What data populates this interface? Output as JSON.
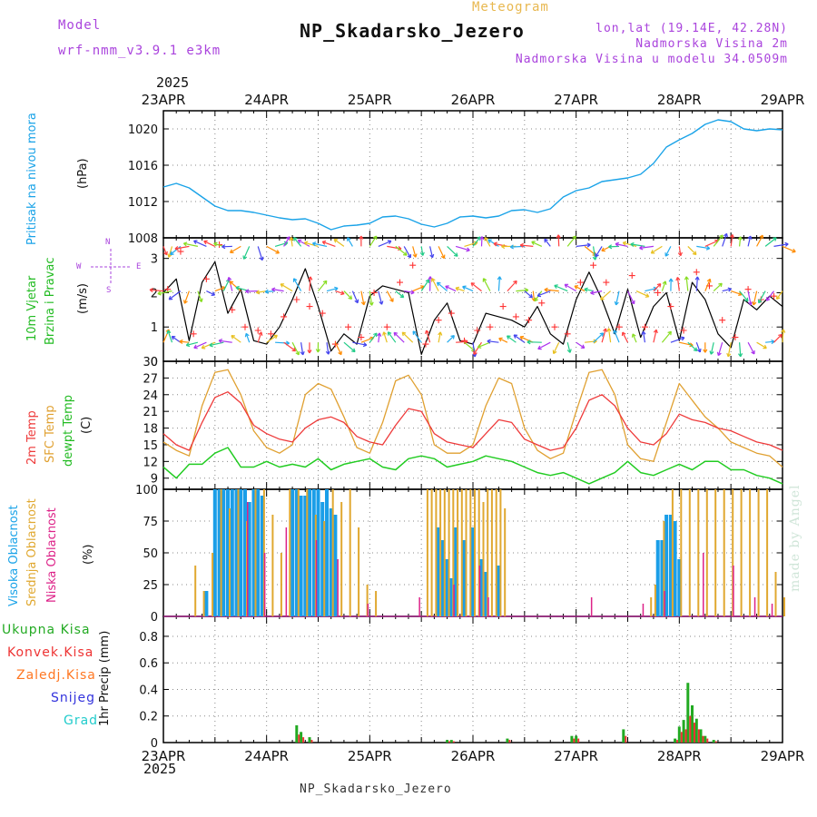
{
  "header": {
    "model_label": "Model",
    "model_name": "wrf-nmm_v3.9.1 e3km",
    "product": "Meteogram",
    "station": "NP_Skadarsko_Jezero",
    "lonlat": "lon,lat (19.14E, 42.28N)",
    "elevation": "Nadmorska Visina 2m",
    "model_elevation": "Nadmorska Visina u modelu 34.0509m",
    "year": "2025",
    "footer_station": "NP_Skadarsko_Jezero",
    "watermark": "made by Angel"
  },
  "colors": {
    "pressure": "#1aa3e8",
    "temp2m": "#ee3a3a",
    "sfc": "#e0a030",
    "dewpt": "#22cc22",
    "high_cloud": "#1a9ee8",
    "mid_cloud": "#e0a830",
    "low_cloud": "#dd2288",
    "total_precip": "#22aa22",
    "conv_precip": "#ee3333",
    "frz_precip": "#ff7722",
    "snow": "#3333dd",
    "hail": "#22cccc",
    "wind_speed": "#000000",
    "wind_gust": "#ff3333",
    "compass": "#aa44dd"
  },
  "x_axis": {
    "days": [
      "23APR",
      "24APR",
      "25APR",
      "26APR",
      "27APR",
      "28APR",
      "29APR"
    ],
    "hours_per_day": 24
  },
  "panels": {
    "pressure": {
      "labels": [
        "Pritisak na nivou mora"
      ],
      "unit": "(hPa)"
    },
    "wind": {
      "labels": [
        "10m Vjetar",
        "Brzina i Pravac"
      ],
      "unit": "(m/s)",
      "compass": {
        "n": "N",
        "s": "S",
        "e": "E",
        "w": "W"
      }
    },
    "temp": {
      "labels": [
        "2m Temp",
        "SFC Temp",
        "dewpt Temp"
      ],
      "unit": "(C)"
    },
    "cloud": {
      "labels": [
        "Visoka Oblacnost",
        "Srednja Oblacnost",
        "Niska Oblacnost"
      ],
      "unit": "(%)"
    },
    "precip": {
      "labels": [
        "Ukupna Kisa",
        "Konvek.Kisa",
        "Zaledj.Kisa",
        "Snijeg",
        "Grad"
      ],
      "unit": "1hr Precip (mm)"
    }
  },
  "chart_data": [
    {
      "type": "line",
      "title": "Pritisak na nivou mora",
      "ylabel": "(hPa)",
      "ylim": [
        1008,
        1022
      ],
      "yticks": [
        1008,
        1012,
        1016,
        1020
      ],
      "series": [
        {
          "name": "Pritisak na nivou mora",
          "x": [
            0,
            3,
            6,
            9,
            12,
            15,
            18,
            21,
            24,
            27,
            30,
            33,
            36,
            39,
            42,
            45,
            48,
            51,
            54,
            57,
            60,
            63,
            66,
            69,
            72,
            75,
            78,
            81,
            84,
            87,
            90,
            93,
            96,
            99,
            102,
            105,
            108,
            111,
            114,
            117,
            120,
            123,
            126,
            129,
            132,
            135,
            138,
            141,
            144
          ],
          "values": [
            1013.6,
            1014.0,
            1013.5,
            1012.5,
            1011.5,
            1011.0,
            1011.0,
            1010.8,
            1010.5,
            1010.2,
            1010.0,
            1010.1,
            1009.6,
            1008.9,
            1009.3,
            1009.4,
            1009.6,
            1010.3,
            1010.4,
            1010.1,
            1009.5,
            1009.2,
            1009.6,
            1010.3,
            1010.4,
            1010.2,
            1010.4,
            1011.0,
            1011.1,
            1010.8,
            1011.2,
            1012.5,
            1013.2,
            1013.5,
            1014.2,
            1014.4,
            1014.6,
            1015.0,
            1016.2,
            1018.0,
            1018.8,
            1019.5,
            1020.5,
            1021.0,
            1020.8,
            1020.0,
            1019.8,
            1020.0,
            1019.9
          ]
        }
      ]
    },
    {
      "type": "line",
      "title": "10m Vjetar Brzina i Pravac",
      "ylabel": "(m/s)",
      "ylim": [
        0,
        3.6
      ],
      "yticks": [
        0,
        1,
        2,
        3
      ],
      "series": [
        {
          "name": "wind speed",
          "x": [
            0,
            3,
            6,
            9,
            12,
            15,
            18,
            21,
            24,
            27,
            30,
            33,
            36,
            39,
            42,
            45,
            48,
            51,
            54,
            57,
            60,
            63,
            66,
            69,
            72,
            75,
            78,
            81,
            84,
            87,
            90,
            93,
            96,
            99,
            102,
            105,
            108,
            111,
            114,
            117,
            120,
            123,
            126,
            129,
            132,
            135,
            138,
            141,
            144
          ],
          "values": [
            2.0,
            2.4,
            0.6,
            2.3,
            2.9,
            1.4,
            2.1,
            0.6,
            0.5,
            1.0,
            1.8,
            2.7,
            1.6,
            0.3,
            0.8,
            0.5,
            1.9,
            2.2,
            2.1,
            2.0,
            0.2,
            1.2,
            1.7,
            0.6,
            0.5,
            1.4,
            1.3,
            1.2,
            1.0,
            1.6,
            0.8,
            0.5,
            1.8,
            2.6,
            1.8,
            0.8,
            2.1,
            0.7,
            1.6,
            2.0,
            0.6,
            2.3,
            1.8,
            0.8,
            0.4,
            1.8,
            1.5,
            1.9,
            1.6
          ]
        },
        {
          "name": "wind gust",
          "x": [
            1,
            4,
            7,
            10,
            13,
            16,
            19,
            22,
            25,
            28,
            31,
            34,
            37,
            40,
            43,
            46,
            49,
            52,
            55,
            58,
            61,
            64,
            67,
            70,
            73,
            76,
            79,
            82,
            85,
            88,
            91,
            94,
            97,
            100,
            103,
            106,
            109,
            112,
            115,
            118,
            121,
            124,
            127,
            130,
            133,
            136,
            139,
            142
          ],
          "values": [
            2.1,
            3.2,
            0.8,
            2.4,
            3.4,
            1.5,
            1.0,
            0.9,
            0.8,
            1.3,
            1.8,
            1.6,
            1.4,
            0.5,
            1.0,
            0.7,
            2.0,
            1.0,
            2.3,
            2.8,
            0.5,
            1.2,
            1.4,
            0.6,
            0.9,
            1.0,
            1.6,
            1.3,
            1.2,
            1.7,
            1.0,
            0.8,
            2.3,
            2.8,
            2.3,
            1.0,
            2.5,
            1.0,
            2.0,
            1.6,
            0.9,
            2.6,
            2.2,
            1.2,
            0.7,
            2.1,
            1.8,
            1.9
          ]
        }
      ]
    },
    {
      "type": "line",
      "title": "2m Temp / SFC Temp / dewpt Temp",
      "ylabel": "(C)",
      "ylim": [
        7,
        30
      ],
      "yticks": [
        9,
        12,
        15,
        18,
        21,
        24,
        27,
        30
      ],
      "series": [
        {
          "name": "2m Temp",
          "x": [
            0,
            3,
            6,
            9,
            12,
            15,
            18,
            21,
            24,
            27,
            30,
            33,
            36,
            39,
            42,
            45,
            48,
            51,
            54,
            57,
            60,
            63,
            66,
            69,
            72,
            75,
            78,
            81,
            84,
            87,
            90,
            93,
            96,
            99,
            102,
            105,
            108,
            111,
            114,
            117,
            120,
            123,
            126,
            129,
            132,
            135,
            138,
            141,
            144
          ],
          "values": [
            17.0,
            15.0,
            14.0,
            19.0,
            23.5,
            24.5,
            22.5,
            18.5,
            17.0,
            16.0,
            15.5,
            18.0,
            19.5,
            20.0,
            19.0,
            16.5,
            15.5,
            15.0,
            18.5,
            21.5,
            21.0,
            17.0,
            15.5,
            15.0,
            14.5,
            17.0,
            19.5,
            19.0,
            16.0,
            15.0,
            14.0,
            14.5,
            18.0,
            23.0,
            24.0,
            22.0,
            18.0,
            15.5,
            15.0,
            17.0,
            20.5,
            19.5,
            19.0,
            18.0,
            17.5,
            16.5,
            15.5,
            15.0,
            14.0
          ]
        },
        {
          "name": "SFC Temp",
          "x": [
            0,
            3,
            6,
            9,
            12,
            15,
            18,
            21,
            24,
            27,
            30,
            33,
            36,
            39,
            42,
            45,
            48,
            51,
            54,
            57,
            60,
            63,
            66,
            69,
            72,
            75,
            78,
            81,
            84,
            87,
            90,
            93,
            96,
            99,
            102,
            105,
            108,
            111,
            114,
            117,
            120,
            123,
            126,
            129,
            132,
            135,
            138,
            141,
            144
          ],
          "values": [
            15.5,
            14.0,
            13.0,
            22.0,
            28.0,
            28.5,
            24.0,
            17.5,
            14.5,
            13.5,
            15.0,
            24.0,
            26.0,
            25.0,
            20.0,
            14.5,
            13.5,
            19.0,
            26.5,
            27.5,
            24.0,
            15.0,
            13.5,
            13.5,
            15.0,
            22.0,
            27.0,
            26.0,
            18.0,
            14.0,
            12.5,
            13.5,
            21.0,
            28.0,
            28.5,
            24.0,
            15.0,
            12.5,
            12.0,
            19.0,
            26.0,
            23.0,
            20.0,
            18.0,
            15.5,
            14.5,
            13.5,
            13.0,
            11.0
          ]
        },
        {
          "name": "dewpt Temp",
          "x": [
            0,
            3,
            6,
            9,
            12,
            15,
            18,
            21,
            24,
            27,
            30,
            33,
            36,
            39,
            42,
            45,
            48,
            51,
            54,
            57,
            60,
            63,
            66,
            69,
            72,
            75,
            78,
            81,
            84,
            87,
            90,
            93,
            96,
            99,
            102,
            105,
            108,
            111,
            114,
            117,
            120,
            123,
            126,
            129,
            132,
            135,
            138,
            141,
            144
          ],
          "values": [
            11.0,
            9.0,
            11.5,
            11.5,
            13.5,
            14.5,
            11.0,
            11.0,
            12.0,
            11.0,
            11.5,
            11.0,
            12.5,
            10.5,
            11.5,
            12.0,
            12.5,
            11.0,
            10.5,
            12.5,
            13.0,
            12.5,
            11.0,
            11.5,
            12.0,
            13.0,
            12.5,
            12.0,
            11.0,
            10.0,
            9.5,
            10.0,
            9.0,
            8.0,
            9.0,
            10.0,
            12.0,
            10.0,
            9.5,
            10.5,
            11.5,
            10.5,
            12.0,
            12.0,
            10.5,
            10.5,
            9.5,
            9.0,
            8.0
          ]
        }
      ]
    },
    {
      "type": "bar",
      "title": "Visoka / Srednja / Niska Oblacnost",
      "ylabel": "(%)",
      "ylim": [
        0,
        100
      ],
      "yticks": [
        0,
        25,
        50,
        75,
        100
      ],
      "series": [
        {
          "name": "Visoka Oblacnost",
          "x": [
            10,
            12,
            13,
            14,
            15,
            16,
            17,
            18,
            19,
            20,
            21,
            22,
            23,
            30,
            31,
            32,
            33,
            34,
            35,
            36,
            37,
            38,
            39,
            40,
            64,
            65,
            66,
            67,
            68,
            70,
            72,
            74,
            75,
            78,
            115,
            116,
            117,
            118,
            119,
            120
          ],
          "values": [
            20,
            100,
            100,
            100,
            100,
            100,
            100,
            100,
            100,
            90,
            100,
            100,
            95,
            100,
            100,
            95,
            95,
            100,
            100,
            100,
            90,
            100,
            85,
            80,
            70,
            60,
            45,
            30,
            70,
            60,
            70,
            45,
            35,
            40,
            60,
            60,
            80,
            80,
            75,
            45
          ]
        },
        {
          "name": "Srednja Oblacnost",
          "x": [
            7,
            9,
            11,
            13,
            15,
            17,
            19,
            21,
            23,
            25,
            27,
            29,
            31,
            33,
            35,
            37,
            39,
            41,
            43,
            45,
            47,
            49,
            61,
            62,
            63,
            64,
            65,
            66,
            67,
            68,
            69,
            70,
            71,
            72,
            73,
            74,
            75,
            76,
            77,
            78,
            79,
            113,
            114,
            116,
            118,
            120,
            122,
            124,
            126,
            128,
            130,
            132,
            134,
            136,
            138,
            140,
            142,
            144
          ],
          "values": [
            40,
            20,
            50,
            100,
            85,
            100,
            75,
            100,
            100,
            80,
            50,
            100,
            100,
            100,
            80,
            75,
            100,
            90,
            100,
            70,
            25,
            20,
            100,
            100,
            100,
            100,
            100,
            100,
            100,
            100,
            100,
            100,
            100,
            100,
            100,
            90,
            100,
            100,
            100,
            100,
            85,
            15,
            25,
            75,
            100,
            100,
            100,
            100,
            100,
            100,
            100,
            100,
            100,
            100,
            100,
            100,
            35,
            15
          ]
        },
        {
          "name": "Niska Oblacnost",
          "x": [
            20,
            24,
            29,
            36,
            41,
            48,
            60,
            68,
            74,
            76,
            100,
            112,
            117,
            126,
            133,
            138,
            142
          ],
          "values": [
            90,
            50,
            70,
            60,
            45,
            10,
            15,
            25,
            40,
            15,
            15,
            10,
            20,
            50,
            40,
            15,
            10
          ]
        }
      ]
    },
    {
      "type": "bar",
      "title": "1hr Precip",
      "ylabel": "1hr Precip (mm)",
      "ylim": [
        0,
        0.95
      ],
      "yticks": [
        0,
        0.2,
        0.4,
        0.6,
        0.8
      ],
      "series": [
        {
          "name": "Ukupna Kisa",
          "x": [
            31,
            32,
            34,
            66,
            67,
            80,
            95,
            96,
            107,
            119,
            120,
            121,
            122,
            123,
            124,
            125,
            126,
            128
          ],
          "values": [
            0.13,
            0.08,
            0.04,
            0.02,
            0.02,
            0.03,
            0.05,
            0.05,
            0.1,
            0.03,
            0.12,
            0.17,
            0.45,
            0.28,
            0.18,
            0.1,
            0.05,
            0.02
          ]
        },
        {
          "name": "Konvek.Kisa",
          "x": [
            31,
            32,
            34,
            66,
            67,
            80,
            95,
            96,
            107,
            119,
            120,
            121,
            122,
            123,
            124,
            125,
            126,
            128
          ],
          "values": [
            0.06,
            0.04,
            0.02,
            0.01,
            0.01,
            0.02,
            0.03,
            0.03,
            0.05,
            0.02,
            0.08,
            0.1,
            0.2,
            0.15,
            0.1,
            0.05,
            0.03,
            0.01
          ]
        },
        {
          "name": "Zaledj.Kisa",
          "x": [],
          "values": []
        },
        {
          "name": "Snijeg",
          "x": [],
          "values": []
        },
        {
          "name": "Grad",
          "x": [],
          "values": []
        }
      ]
    }
  ]
}
